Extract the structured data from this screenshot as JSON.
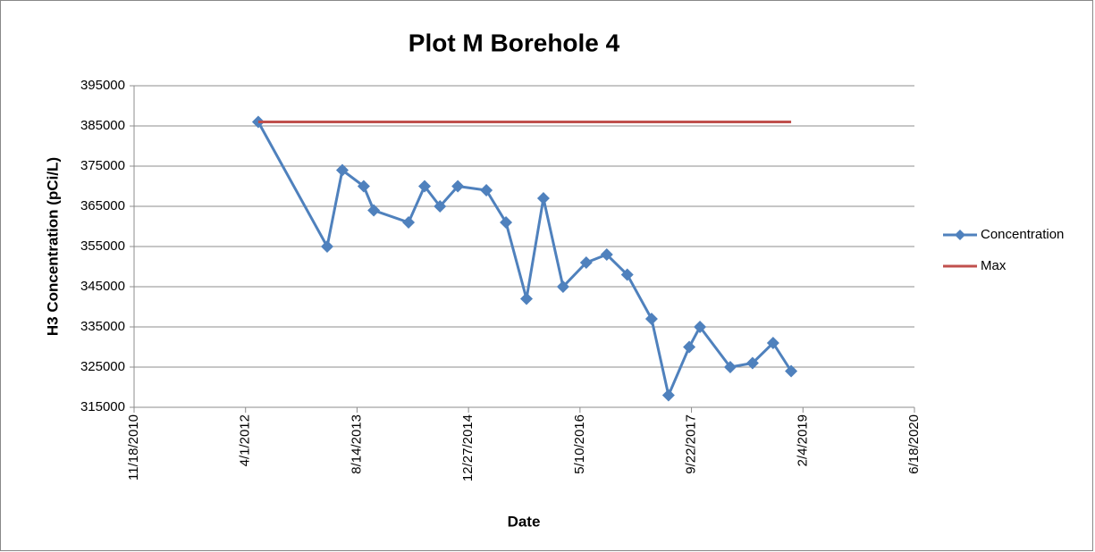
{
  "chart_data": {
    "type": "line",
    "title": "Plot M Borehole 4",
    "xlabel": "Date",
    "ylabel": "H3 Concentration (pCi/L)",
    "legend": "right",
    "grid": true,
    "xlim": [
      "2010-11-18",
      "2020-06-18"
    ],
    "xticks": [
      {
        "value": "2010-11-18",
        "label": "11/18/2010"
      },
      {
        "value": "2012-04-01",
        "label": "4/1/2012"
      },
      {
        "value": "2013-08-14",
        "label": "8/14/2013"
      },
      {
        "value": "2014-12-27",
        "label": "12/27/2014"
      },
      {
        "value": "2016-05-10",
        "label": "5/10/2016"
      },
      {
        "value": "2017-09-22",
        "label": "9/22/2017"
      },
      {
        "value": "2019-02-04",
        "label": "2/4/2019"
      },
      {
        "value": "2020-06-18",
        "label": "6/18/2020"
      }
    ],
    "ylim": [
      315000,
      395000
    ],
    "yticks": [
      315000,
      325000,
      335000,
      345000,
      355000,
      365000,
      375000,
      385000,
      395000
    ],
    "series": [
      {
        "name": "Concentration",
        "color": "#4f81bd",
        "marker": "diamond",
        "x": [
          "2012-05-28",
          "2013-04-02",
          "2013-06-09",
          "2013-09-13",
          "2013-10-28",
          "2014-04-02",
          "2014-06-13",
          "2014-08-21",
          "2014-11-09",
          "2015-03-17",
          "2015-06-13",
          "2015-09-13",
          "2015-11-28",
          "2016-02-24",
          "2016-06-07",
          "2016-09-07",
          "2016-12-08",
          "2017-03-27",
          "2017-06-11",
          "2017-09-12",
          "2017-10-30",
          "2018-03-15",
          "2018-06-23",
          "2018-09-23",
          "2018-12-13"
        ],
        "values": [
          386000,
          355000,
          374000,
          370000,
          364000,
          361000,
          370000,
          365000,
          370000,
          369000,
          361000,
          342000,
          367000,
          345000,
          351000,
          353000,
          348000,
          337000,
          318000,
          330000,
          335000,
          325000,
          326000,
          331000,
          324000
        ]
      },
      {
        "name": "Max",
        "color": "#c0504d",
        "x": [
          "2012-05-28",
          "2018-12-13"
        ],
        "values": [
          386000,
          386000
        ]
      }
    ]
  }
}
